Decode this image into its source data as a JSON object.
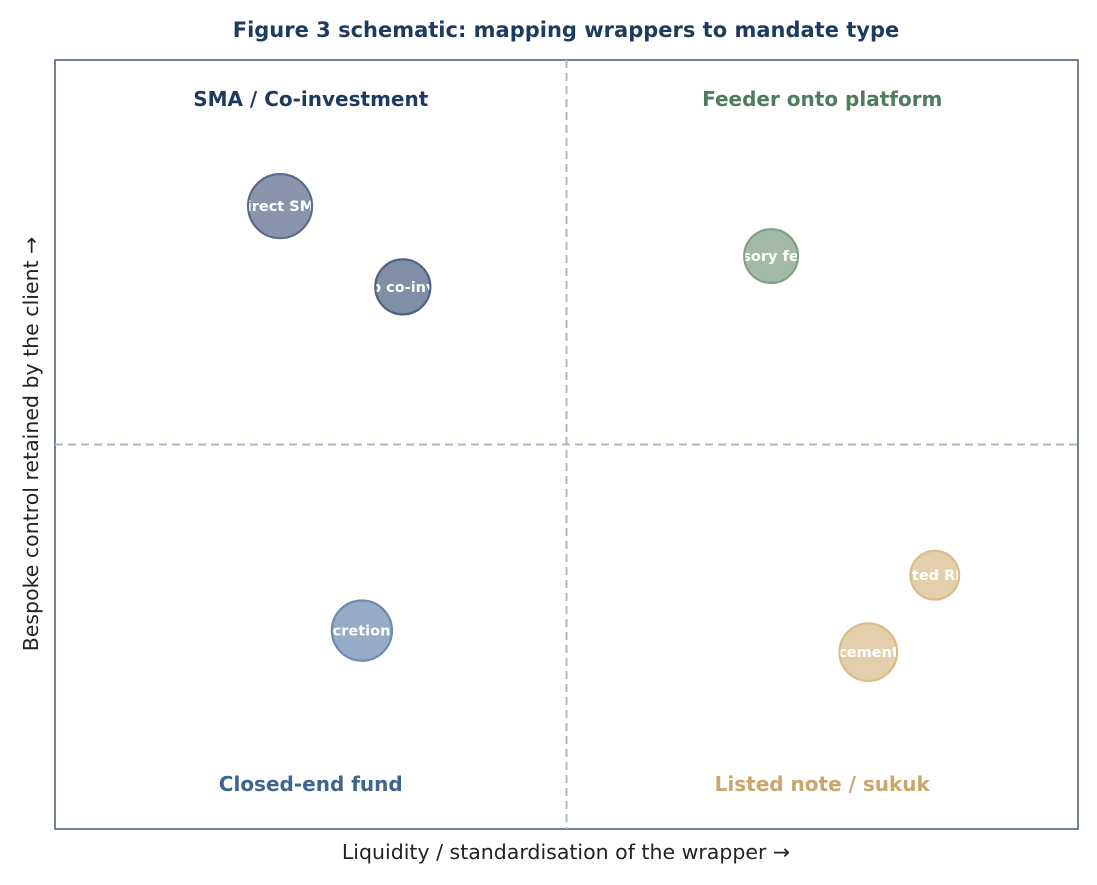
{
  "chart_data": {
    "type": "scatter",
    "title": "Figure 3 schematic: mapping wrappers to mandate type",
    "xlabel": "Liquidity / standardisation of the wrapper  →",
    "ylabel": "Bespoke control retained by the client  →",
    "xlim": [
      0,
      10
    ],
    "ylim": [
      0,
      10
    ],
    "grid": false,
    "dividers": {
      "x": 5,
      "y": 5
    },
    "quadrants": [
      {
        "label": "SMA / Co-investment",
        "position": "top-left",
        "color": "#1f3a5f"
      },
      {
        "label": "Feeder onto platform",
        "position": "top-right",
        "color": "#4f7d5b"
      },
      {
        "label": "Closed-end fund",
        "position": "bottom-left",
        "color": "#3f648f"
      },
      {
        "label": "Listed note / sukuk",
        "position": "bottom-right",
        "color": "#c9a66b"
      }
    ],
    "points": [
      {
        "label": "Direct SMA",
        "x": 2.2,
        "y": 8.1,
        "size": 1.0,
        "color": "#5c6c8e"
      },
      {
        "label": "Club co-invest",
        "x": 3.4,
        "y": 7.05,
        "size": 0.86,
        "color": "#4f6283"
      },
      {
        "label": "Advisory feeder",
        "x": 7.0,
        "y": 7.45,
        "size": 0.84,
        "color": "#7fa088"
      },
      {
        "label": "Listed REIT",
        "x": 8.6,
        "y": 3.3,
        "size": 0.76,
        "color": "#d8bd8a"
      },
      {
        "label": "Private placement certificate",
        "x": 7.95,
        "y": 2.3,
        "size": 0.9,
        "color": "#d8bd8a"
      },
      {
        "label": "Discretionary",
        "x": 3.0,
        "y": 2.58,
        "size": 0.94,
        "color": "#6e8aae"
      }
    ]
  }
}
